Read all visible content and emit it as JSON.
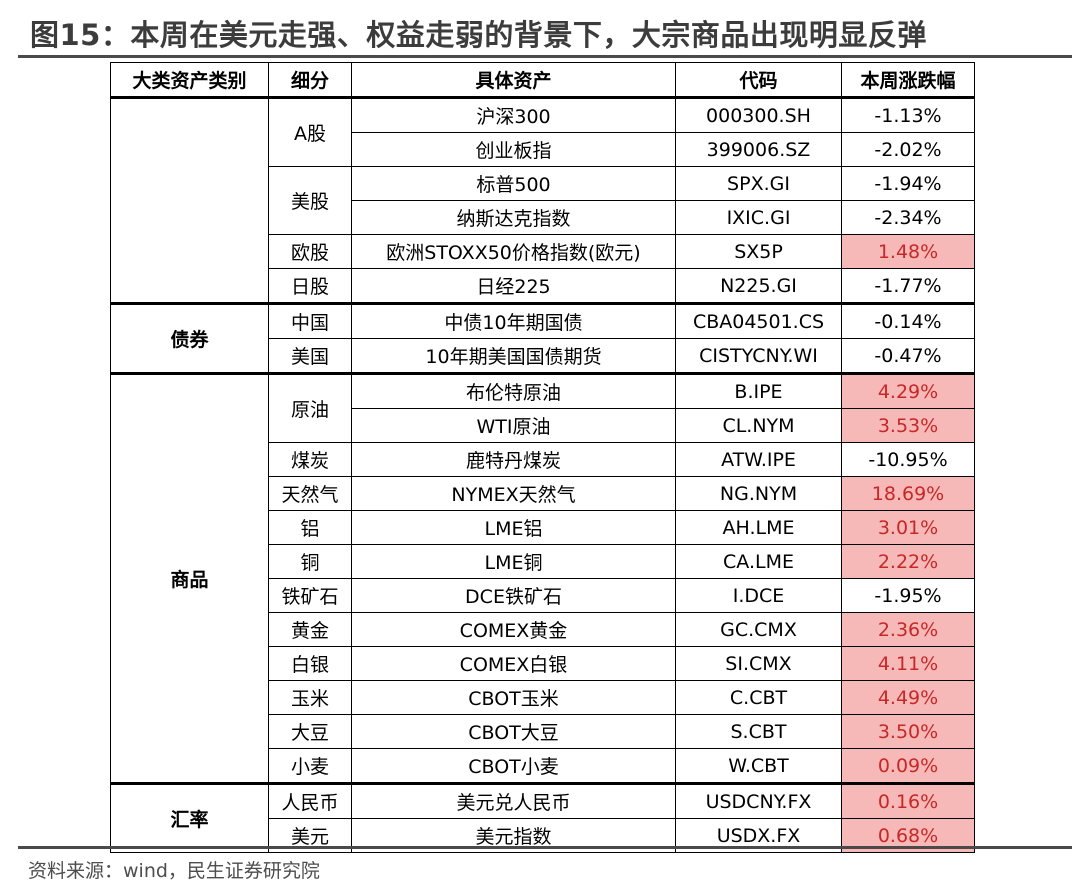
{
  "figure": {
    "title": "图15：本周在美元走强、权益走弱的背景下，大宗商品出现明显反弹",
    "source": "资料来源：wind，民生证券研究院"
  },
  "table": {
    "headers": [
      "大类资产类别",
      "细分",
      "具体资产",
      "代码",
      "本周涨跌幅"
    ],
    "categories": {
      "bonds": "债券",
      "commodities": "商品",
      "fx": "汇率"
    },
    "subcategories": {
      "a_share": "A股",
      "us_stock": "美股",
      "eu_stock": "欧股",
      "jp_stock": "日股",
      "china": "中国",
      "usa": "美国",
      "crude": "原油",
      "coal": "煤炭",
      "natgas": "天然气",
      "aluminum": "铝",
      "copper": "铜",
      "iron_ore": "铁矿石",
      "gold": "黄金",
      "silver": "白银",
      "corn": "玉米",
      "soybean": "大豆",
      "wheat": "小麦",
      "rmb": "人民币",
      "usd": "美元"
    },
    "rows": [
      {
        "asset": "沪深300",
        "code": "000300.SH",
        "change": "-1.13%"
      },
      {
        "asset": "创业板指",
        "code": "399006.SZ",
        "change": "-2.02%"
      },
      {
        "asset": "标普500",
        "code": "SPX.GI",
        "change": "-1.94%"
      },
      {
        "asset": "纳斯达克指数",
        "code": "IXIC.GI",
        "change": "-2.34%"
      },
      {
        "asset": "欧洲STOXX50价格指数(欧元)",
        "code": "SX5P",
        "change": "1.48%"
      },
      {
        "asset": "日经225",
        "code": "N225.GI",
        "change": "-1.77%"
      },
      {
        "asset": "中债10年期国债",
        "code": "CBA04501.CS",
        "change": "-0.14%"
      },
      {
        "asset": "10年期美国国债期货",
        "code": "CISTYCNY.WI",
        "change": "-0.47%"
      },
      {
        "asset": "布伦特原油",
        "code": "B.IPE",
        "change": "4.29%"
      },
      {
        "asset": "WTI原油",
        "code": "CL.NYM",
        "change": "3.53%"
      },
      {
        "asset": "鹿特丹煤炭",
        "code": "ATW.IPE",
        "change": "-10.95%"
      },
      {
        "asset": "NYMEX天然气",
        "code": "NG.NYM",
        "change": "18.69%"
      },
      {
        "asset": "LME铝",
        "code": "AH.LME",
        "change": "3.01%"
      },
      {
        "asset": "LME铜",
        "code": "CA.LME",
        "change": "2.22%"
      },
      {
        "asset": "DCE铁矿石",
        "code": "I.DCE",
        "change": "-1.95%"
      },
      {
        "asset": "COMEX黄金",
        "code": "GC.CMX",
        "change": "2.36%"
      },
      {
        "asset": "COMEX白银",
        "code": "SI.CMX",
        "change": "4.11%"
      },
      {
        "asset": "CBOT玉米",
        "code": "C.CBT",
        "change": "4.49%"
      },
      {
        "asset": "CBOT大豆",
        "code": "S.CBT",
        "change": "3.50%"
      },
      {
        "asset": "CBOT小麦",
        "code": "W.CBT",
        "change": "0.09%"
      },
      {
        "asset": "美元兑人民币",
        "code": "USDCNY.FX",
        "change": "0.16%"
      },
      {
        "asset": "美元指数",
        "code": "USDX.FX",
        "change": "0.68%"
      }
    ]
  },
  "colors": {
    "positive_bg": "#f7b8b8",
    "positive_text": "#c62828",
    "rule": "#4a4a4a"
  }
}
